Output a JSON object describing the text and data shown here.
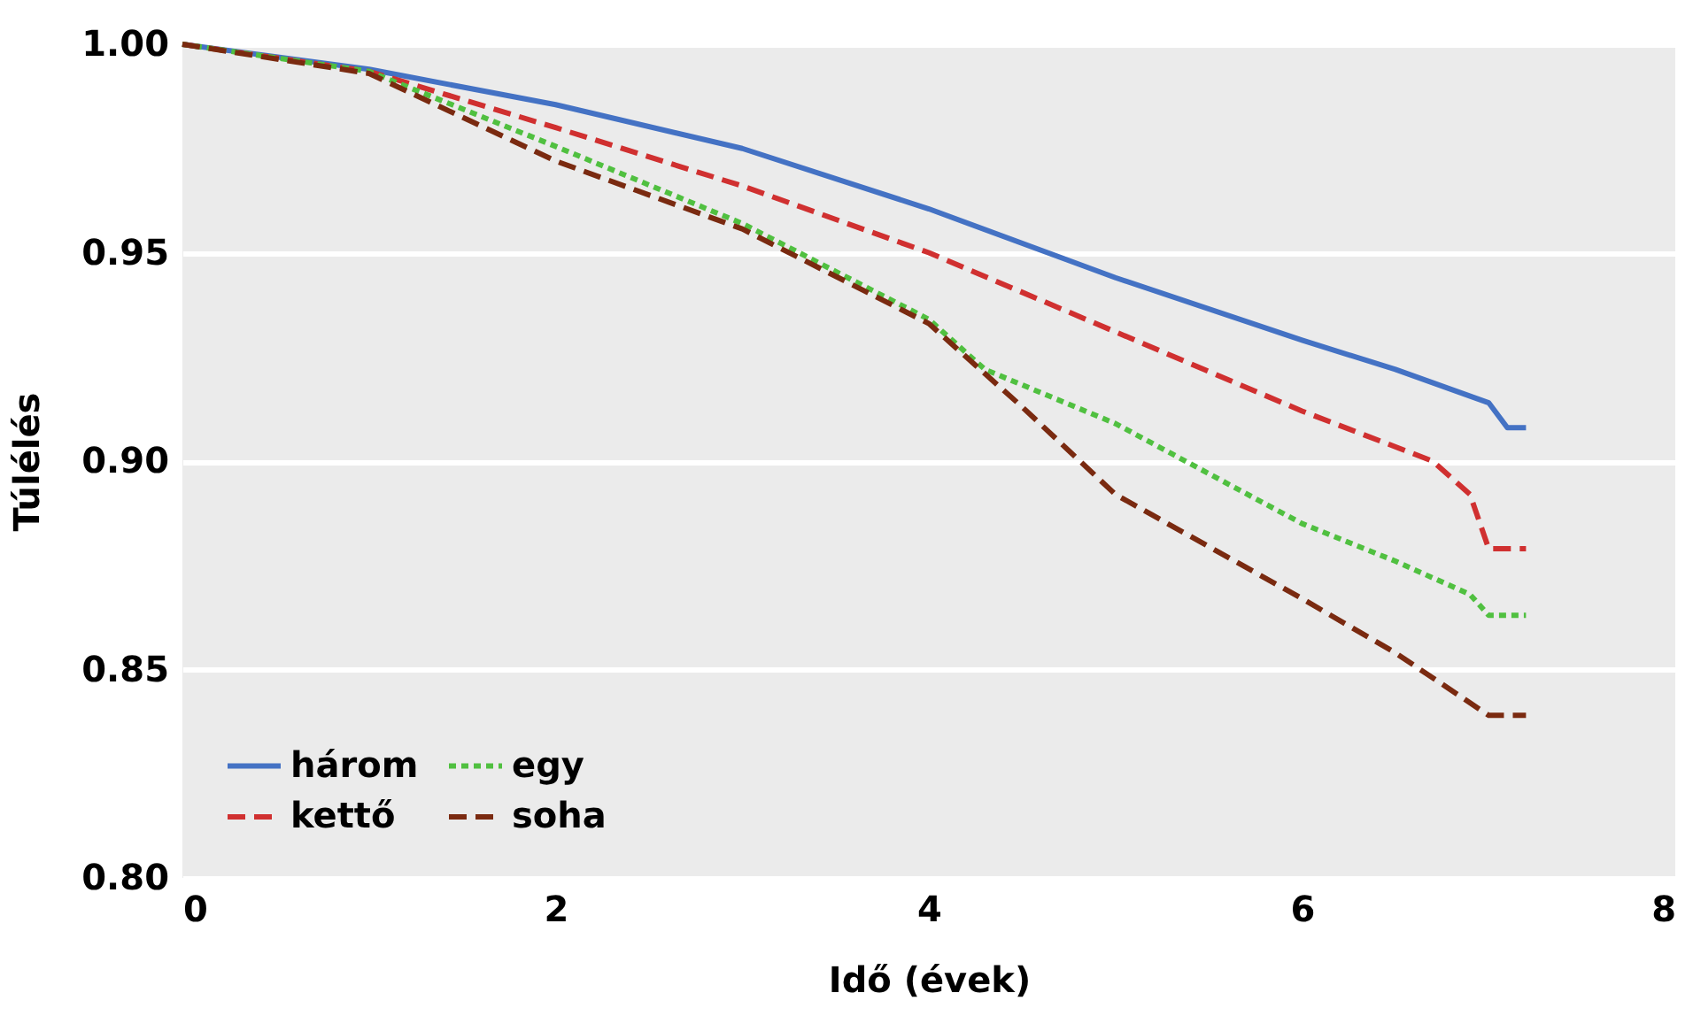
{
  "chart_data": {
    "type": "line",
    "xlabel": "Idő (évek)",
    "ylabel": "Túlélés",
    "xlim": [
      0,
      8
    ],
    "xticks": [
      0,
      2,
      4,
      6,
      8
    ],
    "ylim": [
      0.8,
      1.0
    ],
    "yticks": [
      {
        "value": 0.8,
        "label": "0.80"
      },
      {
        "value": 0.85,
        "label": "0.85"
      },
      {
        "value": 0.9,
        "label": "0.90"
      },
      {
        "value": 0.95,
        "label": "0.95"
      },
      {
        "value": 1.0,
        "label": "1.00"
      }
    ],
    "grid": "y",
    "legend": "bottom left",
    "marker": "none",
    "series": [
      {
        "name": "három",
        "color": "#4472c4",
        "line_style": "solid",
        "x": [
          0,
          1,
          2,
          3,
          4,
          5,
          6,
          6.5,
          7,
          7.1,
          7.2
        ],
        "values": [
          1.0,
          0.994,
          0.9855,
          0.975,
          0.9605,
          0.944,
          0.929,
          0.922,
          0.914,
          0.908,
          0.908
        ]
      },
      {
        "name": "kettő",
        "color": "#d03030",
        "line_style": "dashed",
        "x": [
          0,
          1,
          2,
          3,
          4,
          5,
          6,
          6.7,
          6.9,
          7.0,
          7.2
        ],
        "values": [
          1.0,
          0.9935,
          0.98,
          0.966,
          0.95,
          0.931,
          0.912,
          0.9,
          0.892,
          0.879,
          0.879
        ]
      },
      {
        "name": "egy",
        "color": "#50c040",
        "line_style": "dotted",
        "x": [
          0,
          1,
          2,
          3,
          4,
          4.3,
          5,
          6,
          6.5,
          6.9,
          7.0,
          7.2
        ],
        "values": [
          1.0,
          0.9935,
          0.9755,
          0.957,
          0.934,
          0.922,
          0.909,
          0.885,
          0.876,
          0.868,
          0.863,
          0.863
        ]
      },
      {
        "name": "soha",
        "color": "#7a2a10",
        "line_style": "dashed",
        "x": [
          0,
          1,
          2,
          3,
          4,
          4.5,
          5,
          6,
          6.5,
          7.0,
          7.2
        ],
        "values": [
          1.0,
          0.993,
          0.972,
          0.9557,
          0.933,
          0.913,
          0.892,
          0.867,
          0.854,
          0.839,
          0.839
        ]
      }
    ]
  }
}
